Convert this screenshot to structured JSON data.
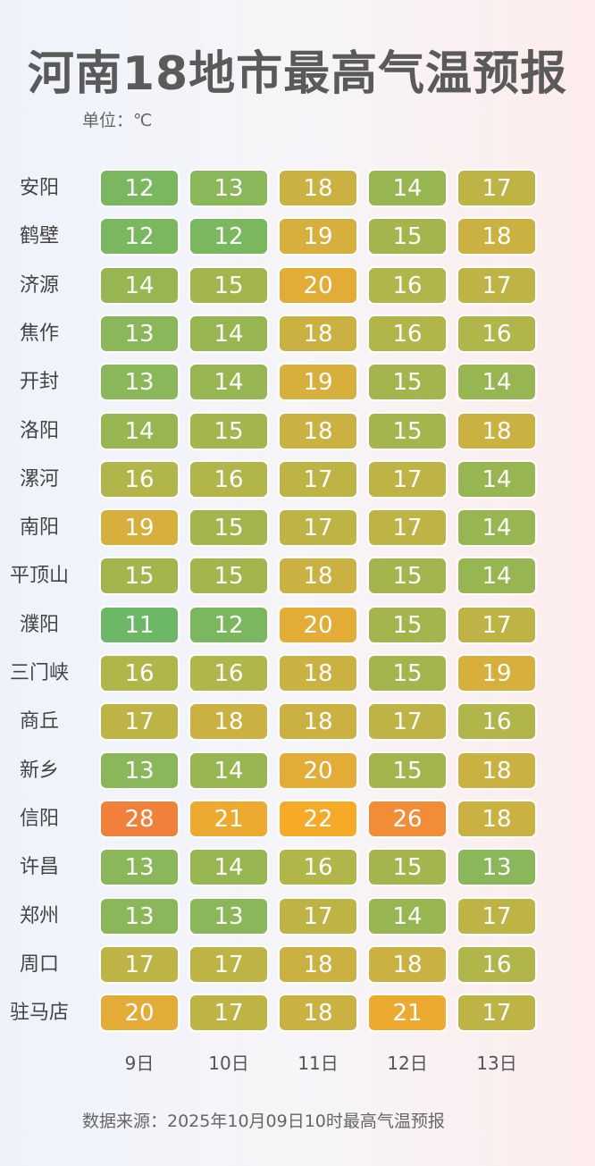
{
  "title": "河南18地市最高气温预报",
  "unit_label": "单位：℃",
  "source": "数据来源：2025年10月09日10时最高气温预报",
  "chart_data": {
    "type": "heatmap",
    "title": "河南18地市最高气温预报",
    "columns": [
      "9日",
      "10日",
      "11日",
      "12日",
      "13日"
    ],
    "rows": [
      {
        "city": "安阳",
        "values": [
          12,
          13,
          18,
          14,
          17
        ]
      },
      {
        "city": "鹤壁",
        "values": [
          12,
          12,
          19,
          15,
          18
        ]
      },
      {
        "city": "济源",
        "values": [
          14,
          15,
          20,
          16,
          17
        ]
      },
      {
        "city": "焦作",
        "values": [
          13,
          14,
          18,
          16,
          16
        ]
      },
      {
        "city": "开封",
        "values": [
          13,
          14,
          19,
          15,
          14
        ]
      },
      {
        "city": "洛阳",
        "values": [
          14,
          15,
          18,
          15,
          18
        ]
      },
      {
        "city": "漯河",
        "values": [
          16,
          16,
          17,
          17,
          14
        ]
      },
      {
        "city": "南阳",
        "values": [
          19,
          15,
          17,
          17,
          14
        ]
      },
      {
        "city": "平顶山",
        "values": [
          15,
          15,
          18,
          15,
          14
        ]
      },
      {
        "city": "濮阳",
        "values": [
          11,
          12,
          20,
          15,
          17
        ]
      },
      {
        "city": "三门峡",
        "values": [
          16,
          16,
          18,
          15,
          19
        ]
      },
      {
        "city": "商丘",
        "values": [
          17,
          18,
          18,
          17,
          16
        ]
      },
      {
        "city": "新乡",
        "values": [
          13,
          14,
          20,
          15,
          18
        ]
      },
      {
        "city": "信阳",
        "values": [
          28,
          21,
          22,
          26,
          18
        ]
      },
      {
        "city": "许昌",
        "values": [
          13,
          14,
          16,
          15,
          13
        ]
      },
      {
        "city": "郑州",
        "values": [
          13,
          13,
          17,
          14,
          17
        ]
      },
      {
        "city": "周口",
        "values": [
          17,
          17,
          18,
          18,
          16
        ]
      },
      {
        "city": "驻马店",
        "values": [
          20,
          17,
          18,
          21,
          17
        ]
      }
    ]
  }
}
